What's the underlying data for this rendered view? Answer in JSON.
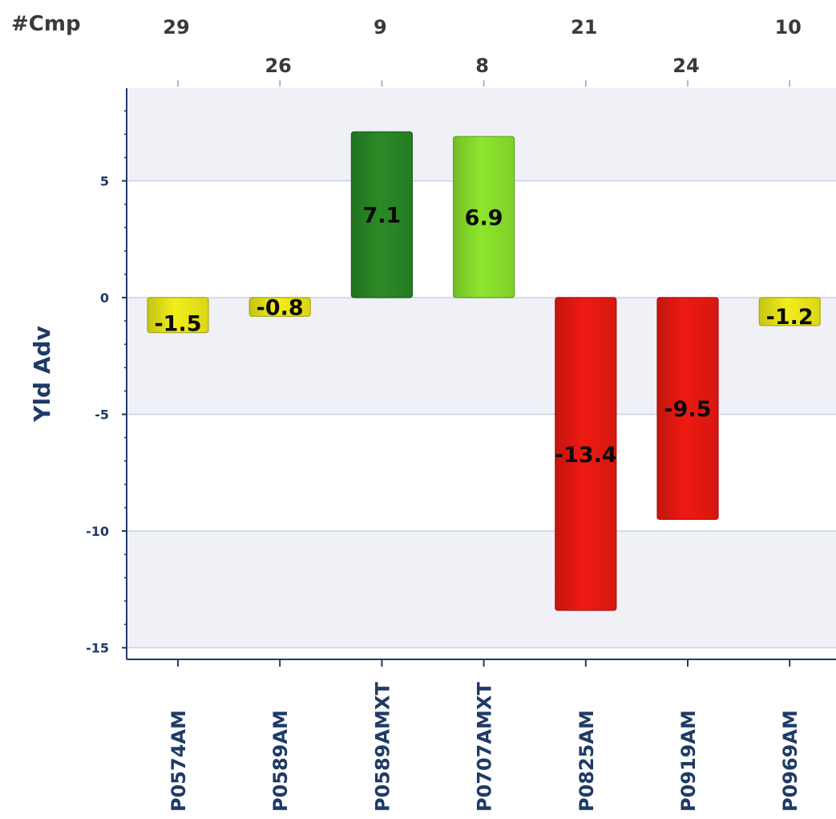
{
  "chart_data": {
    "type": "bar",
    "ylabel": "Yld Adv",
    "top_axis_title": "#Cmp",
    "categories": [
      "P0574AM",
      "P0589AM",
      "P0589AMXT",
      "P0707AMXT",
      "P0825AM",
      "P0919AM",
      "P0969AM"
    ],
    "values": [
      -1.5,
      -0.8,
      7.1,
      6.9,
      -13.4,
      -9.5,
      -1.2
    ],
    "data_labels": [
      "-1.5",
      "-0.8",
      "7.1",
      "6.9",
      "-13.4",
      "-9.5",
      "-1.2"
    ],
    "cmp_counts": [
      "29",
      "26",
      "9",
      "8",
      "21",
      "24",
      "10"
    ],
    "bar_colors": [
      "#f2ee1a",
      "#f2ee1a",
      "#2a8a26",
      "#8ee62e",
      "#ee1a12",
      "#ee1a12",
      "#f2ee1a"
    ],
    "yticks": [
      5,
      0,
      -5,
      -10,
      -15
    ],
    "ytick_labels": [
      "5",
      "0",
      "-5",
      "-10",
      "-15"
    ],
    "ylim": [
      -15.5,
      8.8
    ],
    "grid": true,
    "alternating_bands": true,
    "band_color": "#eff1f6",
    "gridline_color": "#c8d2e0",
    "axis_color": "#1f3a66"
  }
}
